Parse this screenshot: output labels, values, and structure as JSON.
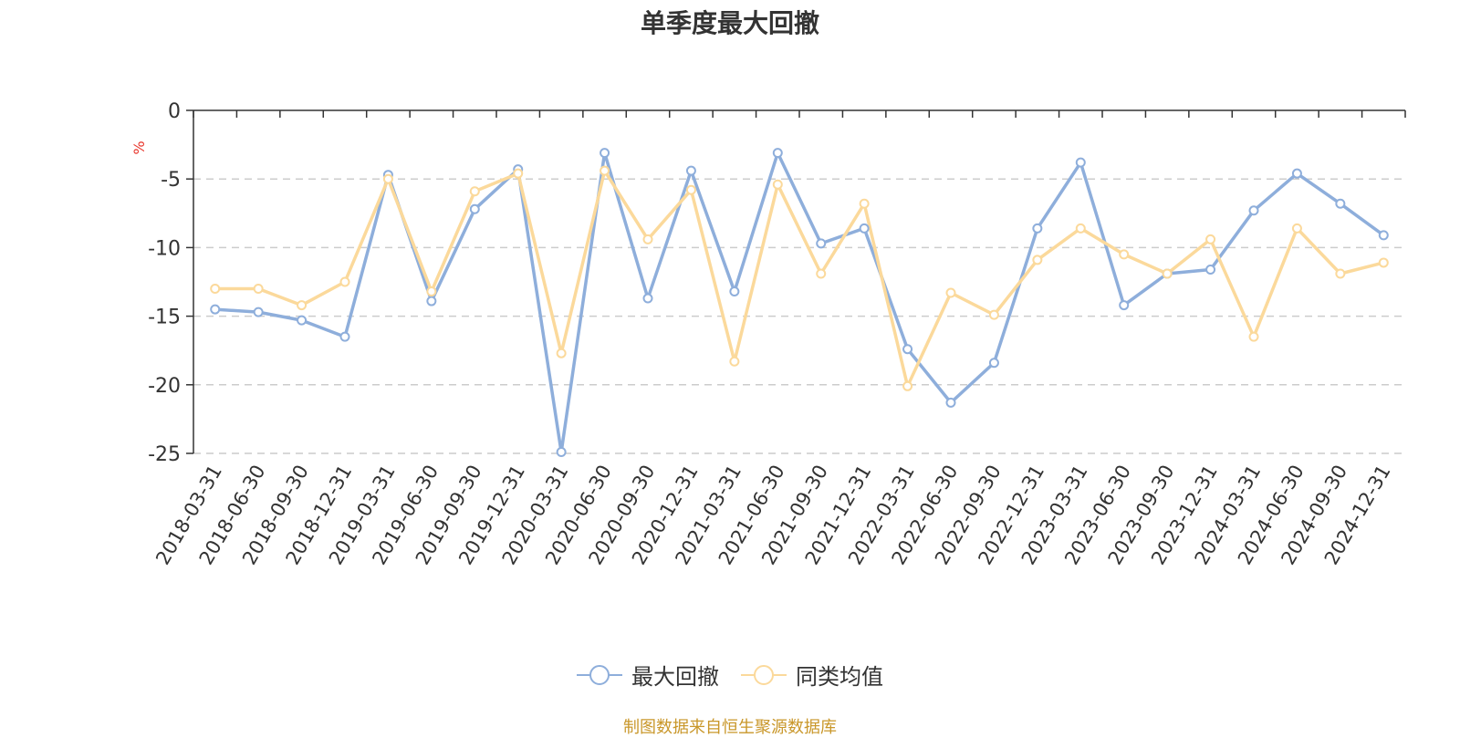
{
  "chart_data": {
    "type": "line",
    "title": "单季度最大回撤",
    "ylabel": "%",
    "ylim": [
      -25,
      0
    ],
    "yticks": [
      0,
      -5,
      -10,
      -15,
      -20,
      -25
    ],
    "grid": true,
    "legend_position": "bottom",
    "categories": [
      "2018-03-31",
      "2018-06-30",
      "2018-09-30",
      "2018-12-31",
      "2019-03-31",
      "2019-06-30",
      "2019-09-30",
      "2019-12-31",
      "2020-03-31",
      "2020-06-30",
      "2020-09-30",
      "2020-12-31",
      "2021-03-31",
      "2021-06-30",
      "2021-09-30",
      "2021-12-31",
      "2022-03-31",
      "2022-06-30",
      "2022-09-30",
      "2022-12-31",
      "2023-03-31",
      "2023-06-30",
      "2023-09-30",
      "2023-12-31",
      "2024-03-31",
      "2024-06-30",
      "2024-09-30",
      "2024-12-31"
    ],
    "series": [
      {
        "name": "最大回撤",
        "color": "#8eaedb",
        "values": [
          -14.5,
          -14.7,
          -15.3,
          -16.5,
          -4.7,
          -13.9,
          -7.2,
          -4.3,
          -24.9,
          -3.1,
          -13.7,
          -4.4,
          -13.2,
          -3.1,
          -9.7,
          -8.6,
          -17.4,
          -21.3,
          -18.4,
          -8.6,
          -3.8,
          -14.2,
          -11.9,
          -11.6,
          -7.3,
          -4.6,
          -6.8,
          -9.1
        ]
      },
      {
        "name": "同类均值",
        "color": "#fbd99b",
        "values": [
          -13.0,
          -13.0,
          -14.2,
          -12.5,
          -5.0,
          -13.2,
          -5.9,
          -4.6,
          -17.7,
          -4.4,
          -9.4,
          -5.8,
          -18.3,
          -5.4,
          -11.9,
          -6.8,
          -20.1,
          -13.3,
          -14.9,
          -10.9,
          -8.6,
          -10.5,
          -11.9,
          -9.4,
          -16.5,
          -8.6,
          -11.9,
          -11.1
        ]
      }
    ]
  },
  "source": "制图数据来自恒生聚源数据库"
}
